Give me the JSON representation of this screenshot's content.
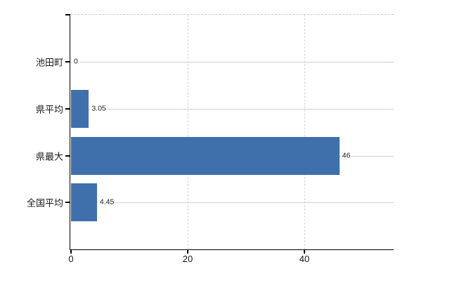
{
  "chart_data": {
    "type": "bar",
    "orientation": "horizontal",
    "title": "",
    "xlabel": "",
    "ylabel": "",
    "categories": [
      "池田町",
      "県平均",
      "県最大",
      "全国平均"
    ],
    "values": [
      0,
      3.05,
      46,
      4.45
    ],
    "value_labels": [
      "0",
      "3.05",
      "46",
      "4.45"
    ],
    "x_ticks": [
      0,
      20,
      40
    ],
    "x_tick_labels": [
      "0",
      "20",
      "40"
    ],
    "xlim": [
      0,
      55.3
    ],
    "grid": true,
    "legend": "none",
    "colors": {
      "bar": "#3f70ac",
      "axis": "#000000",
      "h_gridline": "#cbd3ca",
      "v_gridline": "#d4d4d4",
      "top_border": "#c9c9c9",
      "text": "#1a1a1a",
      "background": "#ffffff"
    }
  }
}
